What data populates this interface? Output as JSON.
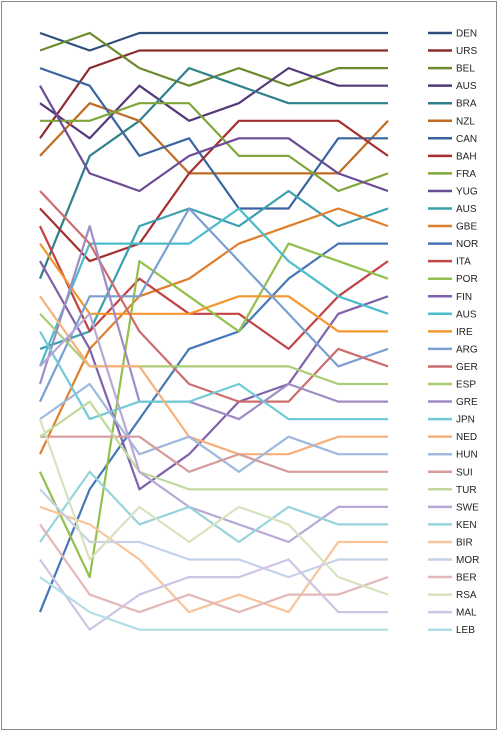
{
  "chart_data": {
    "type": "line",
    "title": "",
    "xlabel": "",
    "ylabel": "",
    "x": [
      1,
      2,
      3,
      4,
      5,
      6,
      7,
      8
    ],
    "y_axis": "rank",
    "ylim": [
      1,
      34
    ],
    "grid": false,
    "legend_position": "right",
    "series": [
      {
        "name": "DEN",
        "color": "#2e4f7c",
        "values": [
          1,
          2,
          1,
          1,
          1,
          1,
          1,
          1
        ]
      },
      {
        "name": "URS",
        "color": "#8c2d2d",
        "values": [
          7,
          3,
          2,
          2,
          2,
          2,
          2,
          2
        ]
      },
      {
        "name": "BEL",
        "color": "#6b8a2e",
        "values": [
          2,
          1,
          3,
          4,
          3,
          4,
          3,
          3
        ]
      },
      {
        "name": "AUS",
        "color": "#553a7a",
        "values": [
          5,
          7,
          4,
          6,
          5,
          3,
          4,
          4
        ]
      },
      {
        "name": "BRA",
        "color": "#2f7f8c",
        "values": [
          15,
          8,
          6,
          3,
          4,
          5,
          5,
          5
        ]
      },
      {
        "name": "NZL",
        "color": "#c06b22",
        "values": [
          8,
          5,
          6,
          9,
          9,
          9,
          9,
          6
        ]
      },
      {
        "name": "CAN",
        "color": "#3a64a0",
        "values": [
          3,
          4,
          8,
          7,
          11,
          11,
          7,
          7
        ]
      },
      {
        "name": "BAH",
        "color": "#a32f2f",
        "values": [
          11,
          14,
          13,
          9,
          6,
          6,
          6,
          8
        ]
      },
      {
        "name": "FRA",
        "color": "#7fa63a",
        "values": [
          6,
          6,
          5,
          5,
          8,
          8,
          10,
          9
        ]
      },
      {
        "name": "YUG",
        "color": "#6a4c96",
        "values": [
          4,
          9,
          10,
          8,
          7,
          7,
          9,
          10
        ]
      },
      {
        "name": "AUS",
        "color": "#3aa0ae",
        "values": [
          19,
          18,
          12,
          11,
          12,
          10,
          12,
          11
        ]
      },
      {
        "name": "GBE",
        "color": "#e07e2c",
        "values": [
          25,
          19,
          16,
          15,
          13,
          12,
          11,
          12
        ]
      },
      {
        "name": "NOR",
        "color": "#4677b8",
        "values": [
          34,
          27,
          23,
          19,
          18,
          15,
          13,
          13
        ]
      },
      {
        "name": "ITA",
        "color": "#c24343",
        "values": [
          12,
          18,
          15,
          17,
          17,
          19,
          16,
          14
        ]
      },
      {
        "name": "POR",
        "color": "#93bf4c",
        "values": [
          26,
          32,
          14,
          16,
          18,
          13,
          14,
          15
        ]
      },
      {
        "name": "FIN",
        "color": "#7f62ab",
        "values": [
          14,
          19,
          27,
          25,
          22,
          21,
          17,
          16
        ]
      },
      {
        "name": "AUS",
        "color": "#4bbccb",
        "values": [
          20,
          13,
          13,
          13,
          11,
          14,
          16,
          17
        ]
      },
      {
        "name": "IRE",
        "color": "#f5972f",
        "values": [
          13,
          17,
          17,
          17,
          16,
          16,
          18,
          18
        ]
      },
      {
        "name": "ARG",
        "color": "#7a9fd0",
        "values": [
          22,
          16,
          16,
          11,
          14,
          17,
          20,
          19
        ]
      },
      {
        "name": "GER",
        "color": "#cc6d6d",
        "values": [
          10,
          13,
          18,
          21,
          22,
          22,
          19,
          20
        ]
      },
      {
        "name": "ESP",
        "color": "#a9cc74",
        "values": [
          17,
          20,
          20,
          20,
          20,
          20,
          21,
          21
        ]
      },
      {
        "name": "GRE",
        "color": "#9f8cc4",
        "values": [
          21,
          12,
          22,
          22,
          23,
          21,
          22,
          22
        ]
      },
      {
        "name": "JPN",
        "color": "#6fcbd6",
        "values": [
          18,
          23,
          22,
          22,
          21,
          23,
          23,
          23
        ]
      },
      {
        "name": "NED",
        "color": "#f8b07a",
        "values": [
          16,
          20,
          20,
          24,
          25,
          25,
          24,
          24
        ]
      },
      {
        "name": "HUN",
        "color": "#9fb8dd",
        "values": [
          23,
          21,
          25,
          24,
          26,
          24,
          25,
          25
        ]
      },
      {
        "name": "SUI",
        "color": "#d69c9c",
        "values": [
          24,
          24,
          24,
          26,
          25,
          26,
          26,
          26
        ]
      },
      {
        "name": "TUR",
        "color": "#c2d99e",
        "values": [
          24,
          22,
          26,
          27,
          27,
          27,
          27,
          27
        ]
      },
      {
        "name": "SWE",
        "color": "#b8a8d6",
        "values": [
          20,
          17,
          26,
          28,
          29,
          30,
          28,
          28
        ]
      },
      {
        "name": "KEN",
        "color": "#96d4dc",
        "values": [
          30,
          26,
          29,
          28,
          30,
          28,
          29,
          29
        ]
      },
      {
        "name": "BIR",
        "color": "#f9c49a",
        "values": [
          28,
          29,
          31,
          34,
          33,
          34,
          30,
          30
        ]
      },
      {
        "name": "MOR",
        "color": "#c4d1e6",
        "values": [
          27,
          30,
          30,
          31,
          31,
          32,
          31,
          31
        ]
      },
      {
        "name": "BER",
        "color": "#e3b8b8",
        "values": [
          29,
          33,
          34,
          33,
          34,
          33,
          33,
          32
        ]
      },
      {
        "name": "RSA",
        "color": "#d7e3bf",
        "values": [
          23,
          31,
          28,
          30,
          28,
          29,
          32,
          33
        ]
      },
      {
        "name": "MAL",
        "color": "#cfc4e3",
        "values": [
          31,
          35,
          33,
          32,
          32,
          31,
          34,
          34
        ]
      },
      {
        "name": "LEB",
        "color": "#b3dde6",
        "values": [
          32,
          34,
          35,
          35,
          35,
          35,
          35,
          35
        ]
      }
    ]
  }
}
